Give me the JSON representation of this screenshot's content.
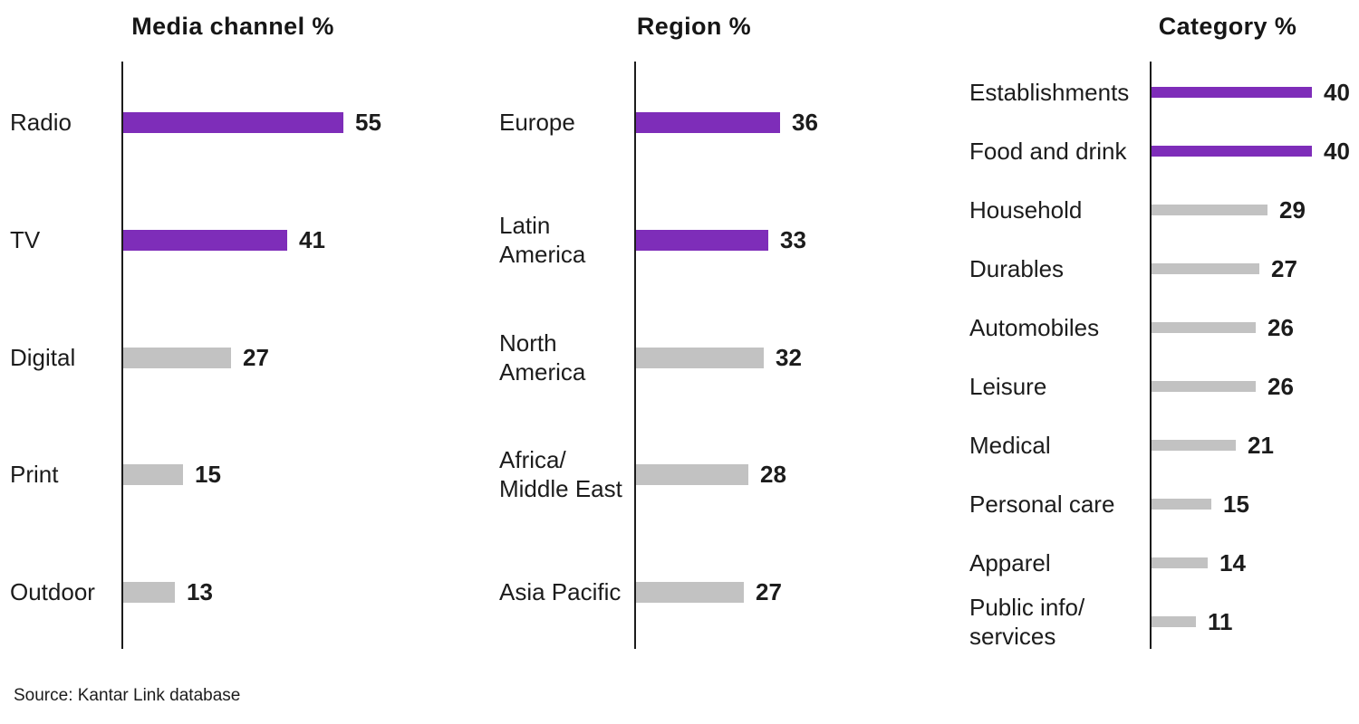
{
  "source_note": "Source: Kantar Link database",
  "colors": {
    "accent_purple": "#7E2DB9",
    "neutral_gray": "#C2C2C2",
    "text": "#1C1C1C",
    "background": "#FFFFFF"
  },
  "chart_data": [
    {
      "type": "bar",
      "orientation": "horizontal",
      "title": "Media channel %",
      "categories": [
        "Radio",
        "TV",
        "Digital",
        "Print",
        "Outdoor"
      ],
      "categories_display": [
        "Radio",
        "TV",
        "Digital",
        "Print",
        "Outdoor"
      ],
      "values": [
        55,
        41,
        27,
        15,
        13
      ],
      "highlighted": [
        true,
        true,
        false,
        false,
        false
      ],
      "unit": "percent",
      "value_axis_visible": false,
      "xlim": [
        0,
        60
      ],
      "grid": false,
      "legend": false
    },
    {
      "type": "bar",
      "orientation": "horizontal",
      "title": "Region %",
      "categories": [
        "Europe",
        "Latin America",
        "North America",
        "Africa/Middle East",
        "Asia Pacific"
      ],
      "categories_display": [
        "Europe",
        "Latin\nAmerica",
        "North\nAmerica",
        "Africa/\nMiddle East",
        "Asia Pacific"
      ],
      "values": [
        36,
        33,
        32,
        28,
        27
      ],
      "highlighted": [
        true,
        true,
        false,
        false,
        false
      ],
      "unit": "percent",
      "value_axis_visible": false,
      "xlim": [
        0,
        40
      ],
      "grid": false,
      "legend": false
    },
    {
      "type": "bar",
      "orientation": "horizontal",
      "title": "Category %",
      "categories": [
        "Establishments",
        "Food and drink",
        "Household",
        "Durables",
        "Automobiles",
        "Leisure",
        "Medical",
        "Personal care",
        "Apparel",
        "Public info/services"
      ],
      "categories_display": [
        "Establishments",
        "Food and drink",
        "Household",
        "Durables",
        "Automobiles",
        "Leisure",
        "Medical",
        "Personal care",
        "Apparel",
        "Public info/\nservices"
      ],
      "values": [
        40,
        40,
        29,
        27,
        26,
        26,
        21,
        15,
        14,
        11
      ],
      "highlighted": [
        true,
        true,
        false,
        false,
        false,
        false,
        false,
        false,
        false,
        false
      ],
      "unit": "percent",
      "value_axis_visible": false,
      "xlim": [
        0,
        45
      ],
      "grid": false,
      "legend": false
    }
  ]
}
